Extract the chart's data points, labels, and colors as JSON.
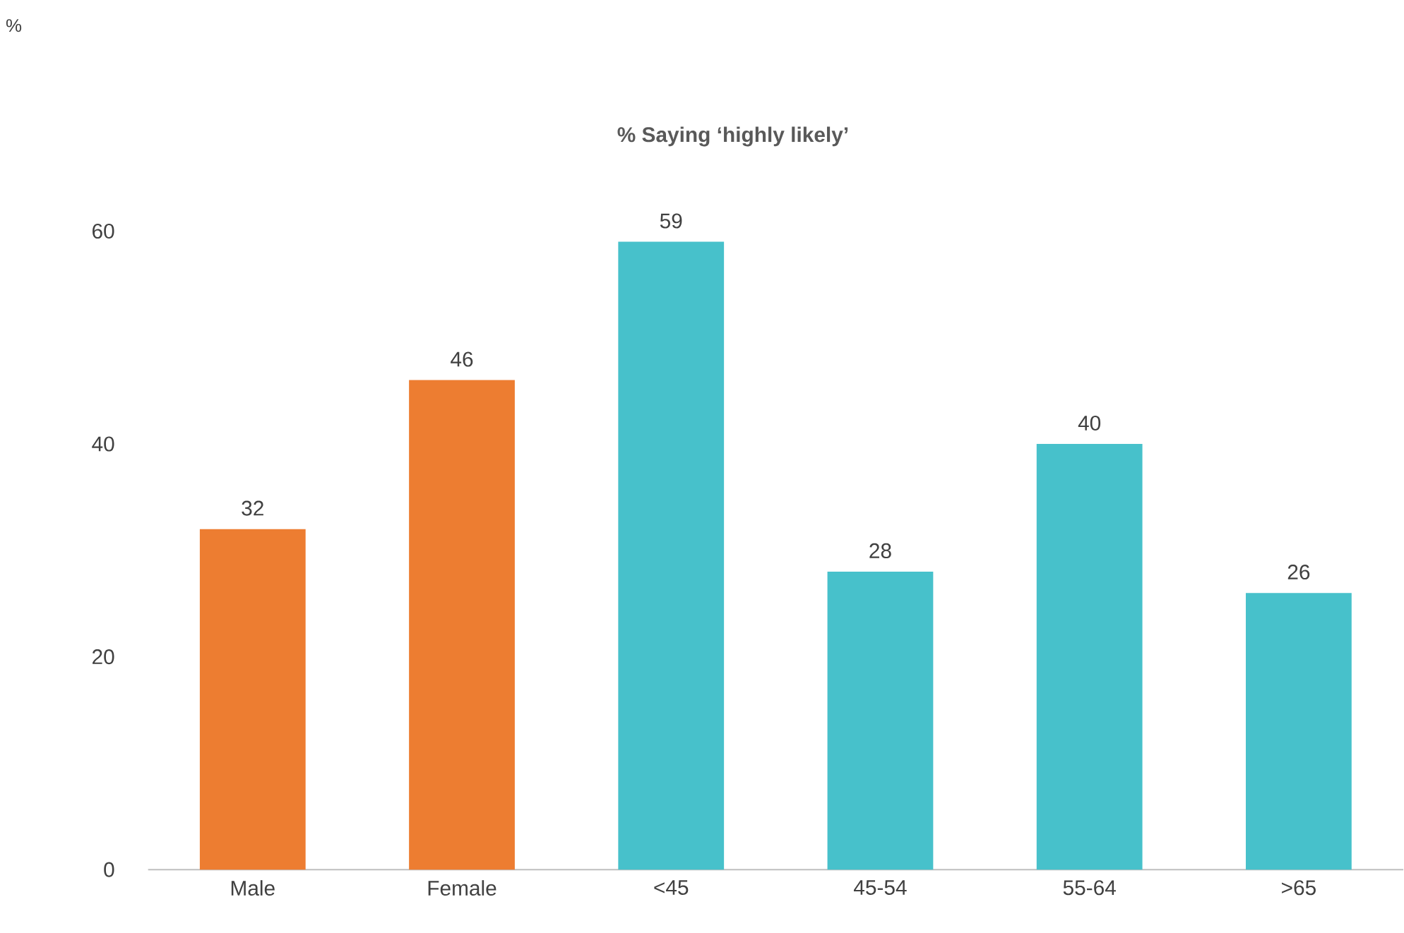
{
  "chart_data": {
    "type": "bar",
    "title": "% Saying ‘highly likely’",
    "annotations": [
      "%"
    ],
    "categories": [
      "Male",
      "Female",
      "<45",
      "45-54",
      "55-64",
      ">65"
    ],
    "values": [
      32,
      46,
      59,
      28,
      40,
      26
    ],
    "colors": [
      "#ed7d31",
      "#ed7d31",
      "#47c1cb",
      "#47c1cb",
      "#47c1cb",
      "#47c1cb"
    ],
    "ylim": [
      0,
      60
    ],
    "yticks": [
      0,
      20,
      40,
      60
    ],
    "data_labels": true,
    "grid": false
  }
}
